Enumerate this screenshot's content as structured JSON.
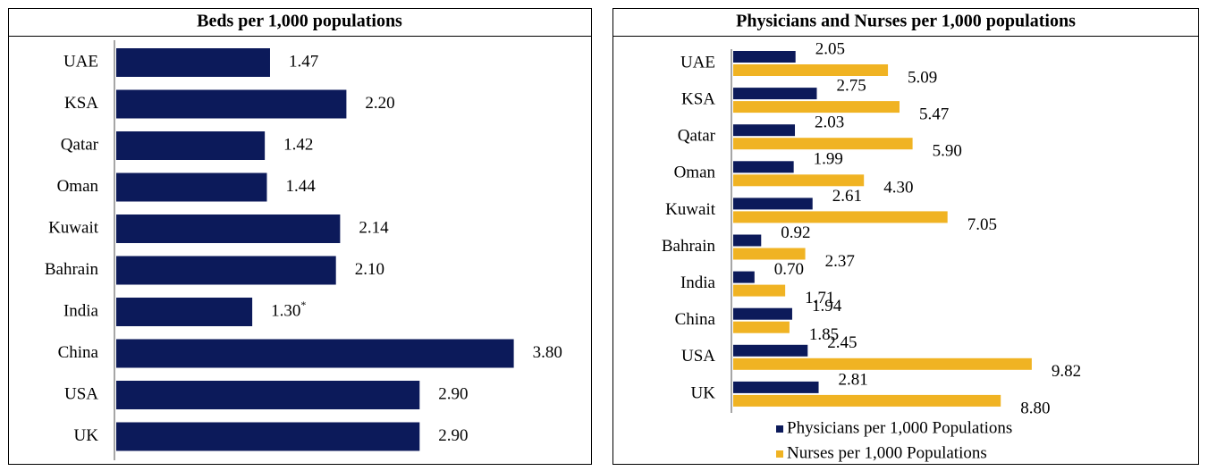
{
  "chart_data": [
    {
      "type": "bar",
      "orientation": "horizontal",
      "title": "Beds per 1,000 populations",
      "categories": [
        "UAE",
        "KSA",
        "Qatar",
        "Oman",
        "Kuwait",
        "Bahrain",
        "India",
        "China",
        "USA",
        "UK"
      ],
      "values": [
        1.47,
        2.2,
        1.42,
        1.44,
        2.14,
        2.1,
        1.3,
        3.8,
        2.9,
        2.9
      ],
      "value_labels": [
        "1.47",
        "2.20",
        "1.42",
        "1.44",
        "2.14",
        "2.10",
        "1.30*",
        "3.80",
        "2.90",
        "2.90"
      ],
      "color": "#0c1a5a",
      "xlim": [
        0,
        4
      ]
    },
    {
      "type": "bar",
      "orientation": "horizontal",
      "title": "Physicians and Nurses per 1,000 populations",
      "categories": [
        "UAE",
        "KSA",
        "Qatar",
        "Oman",
        "Kuwait",
        "Bahrain",
        "India",
        "China",
        "USA",
        "UK"
      ],
      "series": [
        {
          "name": "Physicians per 1,000 Populations",
          "color": "#0c1a5a",
          "values": [
            2.05,
            2.75,
            2.03,
            1.99,
            2.61,
            0.92,
            0.7,
            1.94,
            2.45,
            2.81
          ],
          "value_labels": [
            "2.05",
            "2.75",
            "2.03",
            "1.99",
            "2.61",
            "0.92",
            "0.70",
            "1.94",
            "2.45",
            "2.81"
          ]
        },
        {
          "name": "Nurses per 1,000 Populations",
          "color": "#f0b323",
          "values": [
            5.09,
            5.47,
            5.9,
            4.3,
            7.05,
            2.37,
            1.71,
            1.85,
            9.82,
            8.8
          ],
          "value_labels": [
            "5.09",
            "5.47",
            "5.90",
            "4.30",
            "7.05",
            "2.37",
            "1.71",
            "1.85",
            "9.82",
            "8.80"
          ]
        }
      ],
      "xlim": [
        0,
        10
      ],
      "legend": "bottom"
    }
  ]
}
